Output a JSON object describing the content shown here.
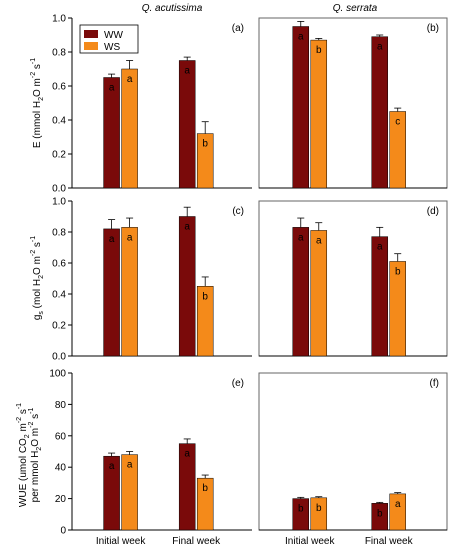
{
  "colors": {
    "WW": "#7a0a0a",
    "WS": "#f48a1a",
    "axis": "#000000",
    "frame": "#666666"
  },
  "column_titles": [
    "Q. acutissima",
    "Q. serrata"
  ],
  "legend": [
    "WW",
    "WS"
  ],
  "row_labels": {
    "E": "E (mmol H2O m-2 s-1)",
    "gs": "gs (mol H2O m-2 s-1)",
    "WUE": "WUE (umol CO2 m-2 s-1 per mmol H2O m-2 s-1)"
  },
  "chart_data": [
    {
      "type": "bar",
      "panel": "(a)",
      "species": "Q. acutissima",
      "variable": "E",
      "categories": [
        "Initial week",
        "Final week"
      ],
      "ylim": [
        0,
        1.0
      ],
      "yticks": [
        "0.0",
        "0.2",
        "0.4",
        "0.6",
        "0.8",
        "1.0"
      ],
      "series": [
        {
          "name": "WW",
          "values": [
            0.65,
            0.75
          ],
          "errors": [
            0.02,
            0.02
          ],
          "letters": [
            "a",
            "a"
          ]
        },
        {
          "name": "WS",
          "values": [
            0.7,
            0.32
          ],
          "errors": [
            0.05,
            0.07
          ],
          "letters": [
            "a",
            "b"
          ]
        }
      ]
    },
    {
      "type": "bar",
      "panel": "(b)",
      "species": "Q. serrata",
      "variable": "E",
      "categories": [
        "Initial week",
        "Final week"
      ],
      "ylim": [
        0,
        1.0
      ],
      "yticks": [],
      "series": [
        {
          "name": "WW",
          "values": [
            0.95,
            0.89
          ],
          "errors": [
            0.03,
            0.01
          ],
          "letters": [
            "a",
            "a"
          ]
        },
        {
          "name": "WS",
          "values": [
            0.87,
            0.45
          ],
          "errors": [
            0.01,
            0.02
          ],
          "letters": [
            "b",
            "c"
          ]
        }
      ]
    },
    {
      "type": "bar",
      "panel": "(c)",
      "species": "Q. acutissima",
      "variable": "gs",
      "categories": [
        "Initial week",
        "Final week"
      ],
      "ylim": [
        0,
        1.0
      ],
      "yticks": [
        "0.0",
        "0.2",
        "0.4",
        "0.6",
        "0.8",
        "1.0"
      ],
      "series": [
        {
          "name": "WW",
          "values": [
            0.82,
            0.9
          ],
          "errors": [
            0.06,
            0.06
          ],
          "letters": [
            "a",
            "a"
          ]
        },
        {
          "name": "WS",
          "values": [
            0.83,
            0.45
          ],
          "errors": [
            0.06,
            0.06
          ],
          "letters": [
            "a",
            "b"
          ]
        }
      ]
    },
    {
      "type": "bar",
      "panel": "(d)",
      "species": "Q. serrata",
      "variable": "gs",
      "categories": [
        "Initial week",
        "Final week"
      ],
      "ylim": [
        0,
        1.0
      ],
      "yticks": [],
      "series": [
        {
          "name": "WW",
          "values": [
            0.83,
            0.77
          ],
          "errors": [
            0.06,
            0.06
          ],
          "letters": [
            "a",
            "a"
          ]
        },
        {
          "name": "WS",
          "values": [
            0.81,
            0.61
          ],
          "errors": [
            0.05,
            0.05
          ],
          "letters": [
            "a",
            "b"
          ]
        }
      ]
    },
    {
      "type": "bar",
      "panel": "(e)",
      "species": "Q. acutissima",
      "variable": "WUE",
      "categories": [
        "Initial week",
        "Final week"
      ],
      "ylim": [
        0,
        100
      ],
      "yticks": [
        "0",
        "20",
        "40",
        "60",
        "80",
        "100"
      ],
      "series": [
        {
          "name": "WW",
          "values": [
            47,
            55
          ],
          "errors": [
            2,
            3
          ],
          "letters": [
            "a",
            "a"
          ]
        },
        {
          "name": "WS",
          "values": [
            48,
            33
          ],
          "errors": [
            2,
            2
          ],
          "letters": [
            "a",
            "b"
          ]
        }
      ]
    },
    {
      "type": "bar",
      "panel": "(f)",
      "species": "Q. serrata",
      "variable": "WUE",
      "categories": [
        "Initial week",
        "Final week"
      ],
      "ylim": [
        0,
        100
      ],
      "yticks": [],
      "series": [
        {
          "name": "WW",
          "values": [
            20,
            17
          ],
          "errors": [
            0.8,
            0.6
          ],
          "letters": [
            "b",
            "b"
          ]
        },
        {
          "name": "WS",
          "values": [
            20.5,
            23
          ],
          "errors": [
            0.7,
            0.8
          ],
          "letters": [
            "b",
            "a"
          ]
        }
      ]
    }
  ]
}
